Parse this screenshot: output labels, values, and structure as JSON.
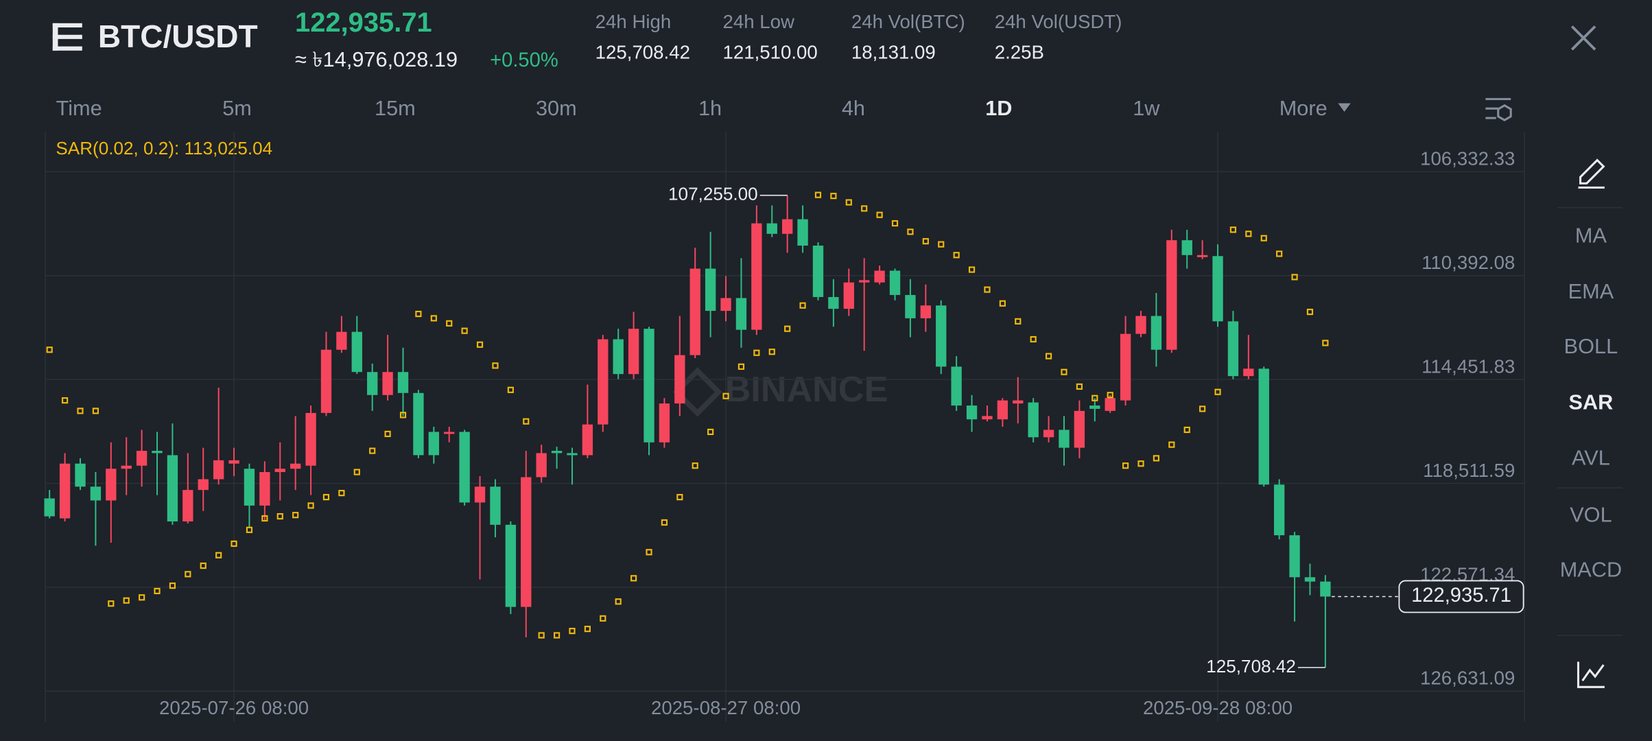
{
  "header": {
    "symbol": "BTC/USDT",
    "price": "122,935.71",
    "fiat_price": "≈ ৳14,976,028.19",
    "change": "+0.50%",
    "stats": [
      {
        "label": "24h High",
        "value": "125,708.42"
      },
      {
        "label": "24h Low",
        "value": "121,510.00"
      },
      {
        "label": "24h Vol(BTC)",
        "value": "18,131.09"
      },
      {
        "label": "24h Vol(USDT)",
        "value": "2.25B"
      }
    ]
  },
  "timeframes": [
    {
      "label": "Time",
      "selected": false
    },
    {
      "label": "5m",
      "selected": false
    },
    {
      "label": "15m",
      "selected": false
    },
    {
      "label": "30m",
      "selected": false
    },
    {
      "label": "1h",
      "selected": false
    },
    {
      "label": "4h",
      "selected": false
    },
    {
      "label": "1D",
      "selected": true
    },
    {
      "label": "1w",
      "selected": false
    },
    {
      "label": "More",
      "selected": false
    }
  ],
  "tools": [
    {
      "label": "MA",
      "selected": false
    },
    {
      "label": "EMA",
      "selected": false
    },
    {
      "label": "BOLL",
      "selected": false
    },
    {
      "label": "SAR",
      "selected": true
    },
    {
      "label": "AVL",
      "selected": false
    },
    {
      "label": "VOL",
      "selected": false
    },
    {
      "label": "MACD",
      "selected": false
    }
  ],
  "watermark": "BINANCE",
  "chart_data": {
    "type": "candlestick",
    "indicator_label": "SAR(0.02, 0.2): 113,025.04",
    "up_color": "#2ebd85",
    "down_color": "#f6465d",
    "sar_color": "#f0b90b",
    "grid": true,
    "y_reversed": true,
    "ylim": [
      104770,
      127830
    ],
    "yticks": [
      {
        "value": 106332.33,
        "label": "106,332.33"
      },
      {
        "value": 110392.08,
        "label": "110,392.08"
      },
      {
        "value": 114451.83,
        "label": "114,451.83"
      },
      {
        "value": 118511.59,
        "label": "118,511.59"
      },
      {
        "value": 122571.34,
        "label": "122,571.34"
      },
      {
        "value": 126631.09,
        "label": "126,631.09"
      }
    ],
    "categories": [
      null,
      null,
      null,
      null,
      null,
      null,
      null,
      null,
      null,
      null,
      null,
      null,
      "2025-07-26 08:00",
      null,
      null,
      null,
      null,
      null,
      null,
      null,
      null,
      null,
      null,
      null,
      null,
      null,
      null,
      null,
      null,
      null,
      null,
      null,
      null,
      null,
      null,
      null,
      null,
      null,
      null,
      null,
      null,
      null,
      null,
      null,
      "2025-08-27 08:00",
      null,
      null,
      null,
      null,
      null,
      null,
      null,
      null,
      null,
      null,
      null,
      null,
      null,
      null,
      null,
      null,
      null,
      null,
      null,
      null,
      null,
      null,
      null,
      null,
      null,
      null,
      null,
      null,
      null,
      null,
      null,
      "2025-09-28 08:00",
      null,
      null,
      null,
      null,
      null,
      null,
      null
    ],
    "open": [
      119100,
      119880,
      117740,
      118640,
      119180,
      117940,
      117820,
      117240,
      117410,
      120000,
      118770,
      118350,
      117740,
      117940,
      119380,
      118070,
      117940,
      117820,
      115760,
      113290,
      112590,
      114160,
      115060,
      114160,
      114980,
      116500,
      116580,
      116500,
      119260,
      118640,
      120130,
      123340,
      118270,
      117240,
      117330,
      117410,
      116210,
      112880,
      114240,
      112470,
      116910,
      115390,
      113500,
      110120,
      111770,
      111270,
      112510,
      108350,
      108760,
      108190,
      109220,
      111230,
      111690,
      110660,
      110660,
      110200,
      111150,
      112060,
      111560,
      113950,
      115470,
      116010,
      116010,
      115390,
      115350,
      116710,
      116420,
      117120,
      115470,
      115680,
      115270,
      112670,
      111970,
      113290,
      109010,
      109670,
      109630,
      112180,
      114320,
      114030,
      118560,
      120540,
      122180,
      122350
    ],
    "high": [
      119880,
      120000,
      118770,
      120950,
      120830,
      118970,
      118640,
      118970,
      120130,
      120080,
      119590,
      118560,
      118230,
      120210,
      120000,
      119180,
      118770,
      118970,
      115880,
      113410,
      114240,
      115680,
      115270,
      115880,
      117530,
      117740,
      116910,
      119380,
      122270,
      120620,
      123620,
      124530,
      118480,
      117940,
      118560,
      117530,
      116500,
      114440,
      114440,
      117410,
      117120,
      115880,
      113620,
      112800,
      112180,
      113210,
      112710,
      108890,
      109500,
      109500,
      111360,
      112390,
      111970,
      113330,
      110740,
      111360,
      112800,
      112590,
      114240,
      115680,
      116500,
      116090,
      116300,
      116170,
      116910,
      116910,
      117820,
      117530,
      116090,
      115760,
      115470,
      112800,
      113950,
      113410,
      110120,
      109750,
      112390,
      114440,
      114440,
      118640,
      120700,
      123910,
      122880,
      125708.42
    ],
    "low": [
      118770,
      117330,
      117530,
      118070,
      116910,
      116710,
      116420,
      116500,
      116170,
      117330,
      117120,
      114770,
      117120,
      117740,
      117650,
      116910,
      115880,
      115470,
      112590,
      111970,
      111970,
      113830,
      112710,
      113210,
      114860,
      116300,
      116300,
      116420,
      118230,
      118350,
      120000,
      117240,
      117000,
      117080,
      117120,
      114650,
      112710,
      112470,
      111810,
      112390,
      115180,
      111970,
      109300,
      108680,
      110410,
      109710,
      107650,
      107650,
      107255,
      107650,
      109090,
      110530,
      110120,
      109710,
      110000,
      110120,
      110530,
      110740,
      111360,
      113540,
      115060,
      115470,
      115180,
      114360,
      115180,
      115880,
      115880,
      115270,
      115180,
      115060,
      111970,
      111770,
      111070,
      108600,
      108600,
      109010,
      109170,
      111770,
      112710,
      113950,
      118350,
      120410,
      121650,
      122100
    ],
    "close": [
      119800,
      117740,
      118640,
      119180,
      117940,
      117820,
      117240,
      117330,
      120000,
      118770,
      118350,
      117610,
      117610,
      119380,
      118070,
      117940,
      117740,
      115760,
      113290,
      112590,
      114160,
      115060,
      114160,
      114980,
      117410,
      117410,
      116500,
      119260,
      118640,
      120130,
      123340,
      118270,
      117330,
      117330,
      117410,
      116210,
      112880,
      114240,
      112470,
      116910,
      115390,
      113500,
      110120,
      111770,
      111270,
      112510,
      108350,
      108760,
      108190,
      109220,
      111230,
      111690,
      110660,
      110570,
      110200,
      111150,
      112060,
      111560,
      113950,
      115470,
      116010,
      115880,
      115270,
      115270,
      116710,
      116420,
      117120,
      115680,
      115600,
      115180,
      112670,
      111970,
      113290,
      109010,
      109590,
      109590,
      112180,
      114320,
      114030,
      118560,
      120540,
      122180,
      122350,
      122935.71
    ],
    "sar": [
      113290,
      115270,
      115680,
      115680,
      123210,
      123090,
      122970,
      122720,
      122510,
      122060,
      121730,
      121320,
      120870,
      120330,
      119880,
      119800,
      119750,
      119380,
      119050,
      118890,
      118070,
      117240,
      116580,
      115840,
      111890,
      112060,
      112260,
      112550,
      113090,
      113910,
      114860,
      116090,
      124450,
      124450,
      124280,
      124200,
      123790,
      123130,
      122220,
      121200,
      120040,
      119050,
      117820,
      116500,
      115100,
      113950,
      113410,
      113370,
      112470,
      111560,
      107240,
      107280,
      107530,
      107770,
      108020,
      108350,
      108680,
      109050,
      109170,
      109590,
      110160,
      110940,
      111480,
      112180,
      112880,
      113540,
      114160,
      114730,
      115180,
      115060,
      117820,
      117740,
      117530,
      117000,
      116420,
      115600,
      114940,
      108600,
      108760,
      108930,
      109540,
      110450,
      111810,
      113025.04
    ],
    "annotations": [
      {
        "value": 107255,
        "label": "107,255.00"
      },
      {
        "value": 125708.42,
        "label": "125,708.42"
      }
    ],
    "last_price": {
      "value": 122935.71,
      "label": "122,935.71"
    }
  }
}
